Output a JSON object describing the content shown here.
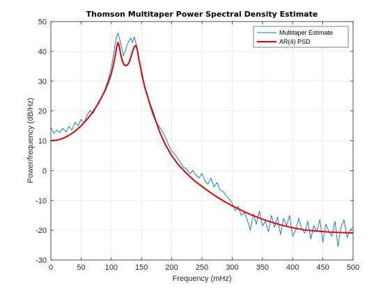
{
  "chart_data": {
    "type": "line",
    "title": "Thomson Multitaper Power Spectral Density Estimate",
    "xlabel": "Frequency (mHz)",
    "ylabel": "Power/frequency (dB/Hz)",
    "xlim": [
      0,
      500
    ],
    "ylim": [
      -30,
      50
    ],
    "xticks": [
      0,
      50,
      100,
      150,
      200,
      250,
      300,
      350,
      400,
      450,
      500
    ],
    "yticks": [
      -30,
      -20,
      -10,
      0,
      10,
      20,
      30,
      40,
      50
    ],
    "grid": true,
    "legend_location": "top-right",
    "series": [
      {
        "name": "Multitaper Estimate",
        "color": "#0072BD",
        "x": [
          0,
          5,
          10,
          15,
          20,
          25,
          30,
          35,
          40,
          45,
          50,
          55,
          60,
          65,
          70,
          75,
          80,
          85,
          90,
          95,
          100,
          103,
          106,
          109,
          111,
          114,
          117,
          120,
          123,
          126,
          129,
          132,
          135,
          138,
          141,
          144,
          147,
          150,
          155,
          160,
          165,
          170,
          175,
          180,
          185,
          190,
          195,
          200,
          205,
          210,
          215,
          220,
          225,
          230,
          235,
          240,
          245,
          250,
          255,
          260,
          265,
          270,
          275,
          280,
          285,
          290,
          295,
          300,
          305,
          310,
          315,
          320,
          325,
          330,
          335,
          340,
          345,
          350,
          355,
          360,
          365,
          370,
          375,
          380,
          385,
          390,
          395,
          400,
          405,
          410,
          415,
          420,
          425,
          430,
          435,
          440,
          445,
          450,
          455,
          460,
          465,
          470,
          475,
          480,
          485,
          490,
          495,
          500
        ],
        "values": [
          14.5,
          12.5,
          13.5,
          12.8,
          14.2,
          13.0,
          14.8,
          13.6,
          16.2,
          15.0,
          17.2,
          16.0,
          18.5,
          20.2,
          19.2,
          21.5,
          23.5,
          25.0,
          27.5,
          30.5,
          34.5,
          38.0,
          42.0,
          45.0,
          46.2,
          44.0,
          41.5,
          38.5,
          40.0,
          42.0,
          43.5,
          44.5,
          43.0,
          44.8,
          42.5,
          39.0,
          36.0,
          32.0,
          28.0,
          25.0,
          22.0,
          19.5,
          16.0,
          14.5,
          13.0,
          11.0,
          8.5,
          6.5,
          5.5,
          4.0,
          2.5,
          1.0,
          0.5,
          -1.0,
          0.0,
          -1.5,
          -2.5,
          -1.0,
          -3.5,
          -4.5,
          -2.5,
          -5.5,
          -4.0,
          -6.5,
          -7.0,
          -8.5,
          -9.5,
          -11.0,
          -13.5,
          -12.0,
          -15.0,
          -14.0,
          -16.5,
          -20.0,
          -14.5,
          -18.0,
          -13.5,
          -18.5,
          -17.0,
          -20.5,
          -15.0,
          -19.0,
          -15.5,
          -21.5,
          -16.0,
          -18.5,
          -15.0,
          -22.0,
          -20.0,
          -16.0,
          -19.5,
          -21.0,
          -17.0,
          -23.0,
          -18.5,
          -20.5,
          -16.5,
          -24.0,
          -18.0,
          -20.5,
          -22.0,
          -17.0,
          -25.5,
          -19.0,
          -16.5,
          -22.5,
          -20.0,
          -19.0
        ]
      },
      {
        "name": "AR(4) PSD",
        "color": "#E00000",
        "x": [
          0,
          10,
          20,
          30,
          40,
          50,
          60,
          70,
          80,
          90,
          95,
          100,
          103,
          106,
          109,
          111,
          113,
          115,
          118,
          121,
          124,
          127,
          130,
          133,
          136,
          139,
          141,
          143,
          146,
          149,
          152,
          156,
          160,
          165,
          170,
          175,
          180,
          190,
          200,
          210,
          220,
          230,
          240,
          250,
          260,
          270,
          280,
          290,
          300,
          310,
          320,
          330,
          340,
          350,
          360,
          370,
          380,
          390,
          400,
          420,
          440,
          460,
          480,
          500
        ],
        "values": [
          10.0,
          10.2,
          10.8,
          11.8,
          13.2,
          15.0,
          17.2,
          19.8,
          23.0,
          27.0,
          29.5,
          32.5,
          35.0,
          38.0,
          41.5,
          43.0,
          42.0,
          39.5,
          37.0,
          35.5,
          35.2,
          35.5,
          36.5,
          38.5,
          40.5,
          41.8,
          42.0,
          40.5,
          37.0,
          34.0,
          31.0,
          27.5,
          25.0,
          21.5,
          18.5,
          16.0,
          13.0,
          8.5,
          5.0,
          2.2,
          0.0,
          -2.0,
          -3.8,
          -5.3,
          -6.8,
          -8.2,
          -9.5,
          -10.7,
          -11.8,
          -12.8,
          -13.8,
          -14.7,
          -15.5,
          -16.3,
          -17.0,
          -17.6,
          -18.2,
          -18.7,
          -19.2,
          -19.9,
          -20.3,
          -20.6,
          -20.8,
          -20.9
        ]
      }
    ]
  }
}
